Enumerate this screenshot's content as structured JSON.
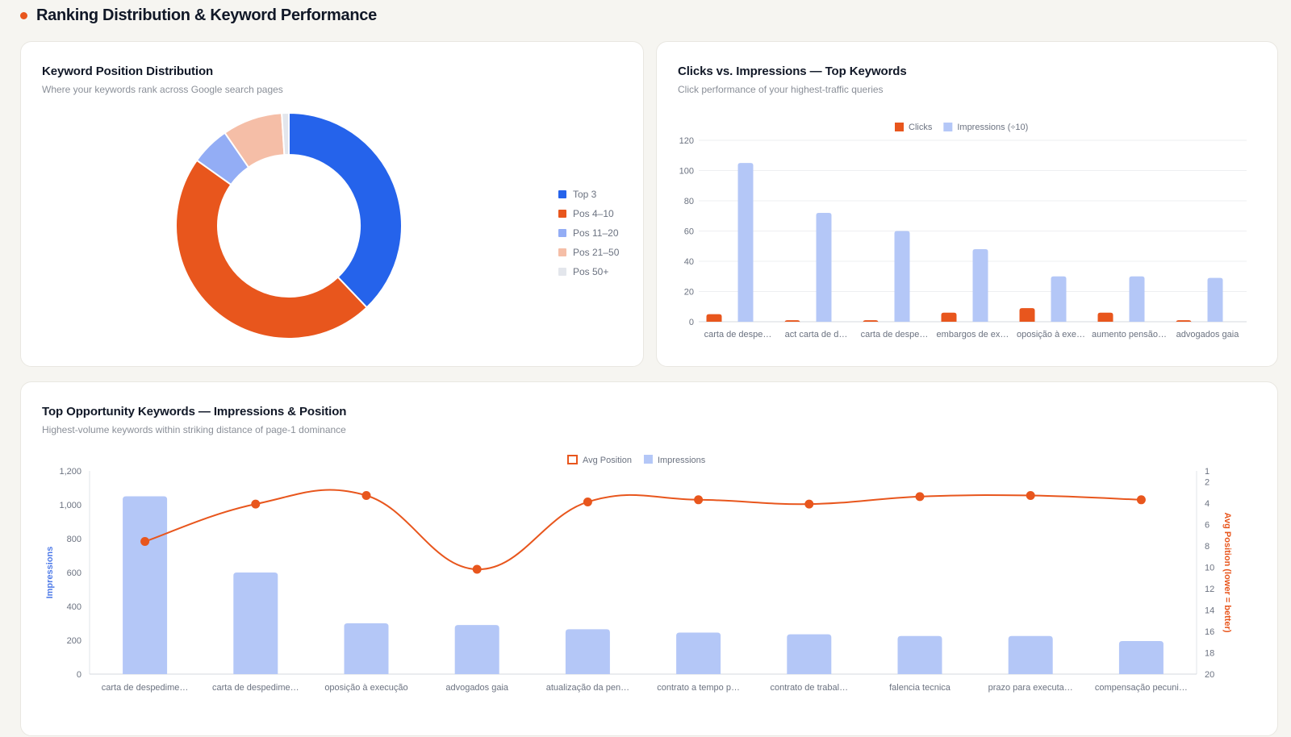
{
  "section": {
    "title": "Ranking Distribution & Keyword Performance",
    "accent_color": "#e8561d"
  },
  "donut_card": {
    "title": "Keyword Position Distribution",
    "subtitle": "Where your keywords rank across Google search pages"
  },
  "clicks_card": {
    "title": "Clicks vs. Impressions — Top Keywords",
    "subtitle": "Click performance of your highest-traffic queries"
  },
  "opportunity_card": {
    "title": "Top Opportunity Keywords — Impressions & Position",
    "subtitle": "Highest-volume keywords within striking distance of page-1 dominance"
  },
  "chart_data": [
    {
      "type": "pie",
      "variant": "donut",
      "labels": [
        "Top 3",
        "Pos 4–10",
        "Pos 11–20",
        "Pos 21–50",
        "Pos 50+"
      ],
      "values": [
        37.5,
        46.5,
        5.5,
        8.5,
        1.0
      ],
      "colors": [
        "#2563eb",
        "#e8561d",
        "#93adf5",
        "#f5bea7",
        "#e3e6ec"
      ],
      "legend_position": "right"
    },
    {
      "type": "bar",
      "categories": [
        "carta de despe…",
        "act carta de d…",
        "carta de despe…",
        "embargos de ex…",
        "oposição à exe…",
        "aumento pensão…",
        "advogados gaia"
      ],
      "series": [
        {
          "name": "Clicks",
          "values": [
            5,
            1,
            1,
            6,
            9,
            6,
            1
          ],
          "color": "#e8561d"
        },
        {
          "name": "Impressions (÷10)",
          "values": [
            105,
            72,
            60,
            48,
            30,
            30,
            29
          ],
          "color": "#b4c7f7"
        }
      ],
      "ylim": [
        0,
        120
      ],
      "yticks": [
        0,
        20,
        40,
        60,
        80,
        100,
        120
      ],
      "grid": true,
      "legend_position": "top-center"
    },
    {
      "type": "bar",
      "combo": "bar+line",
      "categories": [
        "carta de despedime…",
        "carta de despedime…",
        "oposição à execução",
        "advogados gaia",
        "atualização da pen…",
        "contrato a tempo p…",
        "contrato de trabal…",
        "falencia tecnica",
        "prazo para executa…",
        "compensação pecuni…"
      ],
      "series": [
        {
          "name": "Impressions",
          "type": "bar",
          "axis": "left",
          "values": [
            1050,
            600,
            300,
            290,
            265,
            245,
            235,
            225,
            225,
            195
          ],
          "color": "#b4c7f7"
        },
        {
          "name": "Avg Position",
          "type": "line",
          "axis": "right",
          "values": [
            7.6,
            4.1,
            3.3,
            10.2,
            3.9,
            3.7,
            4.1,
            3.4,
            3.3,
            3.7
          ],
          "color": "#e8561d"
        }
      ],
      "ylabel": "Impressions",
      "ylim": [
        0,
        1200
      ],
      "yticks": [
        0,
        200,
        400,
        600,
        800,
        "1,000",
        "1,200"
      ],
      "y2label": "Avg Position (lower = better)",
      "y2lim": [
        1,
        20
      ],
      "y2_inverted": true,
      "y2ticks": [
        1,
        2,
        4,
        6,
        8,
        10,
        12,
        14,
        16,
        18,
        20
      ],
      "legend_position": "top-center"
    }
  ]
}
